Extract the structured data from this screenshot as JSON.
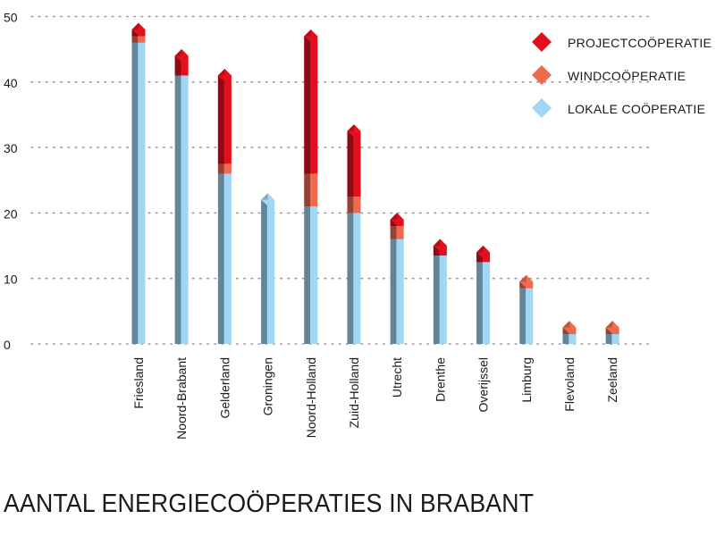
{
  "chart_data": {
    "type": "bar",
    "title": "AANTAL ENERGIECOÖPERATIES IN BRABANT",
    "xlabel": "",
    "ylabel": "",
    "ylim": [
      0,
      50
    ],
    "yticks": [
      "0",
      "10",
      "20",
      "30",
      "40",
      "50"
    ],
    "grid": true,
    "stacked": true,
    "legend_position": "top-right",
    "categories": [
      "Friesland",
      "Noord-Brabant",
      "Gelderland",
      "Groningen",
      "Noord-Holland",
      "Zuid-Holland",
      "Utrecht",
      "Drenthe",
      "Overijssel",
      "Limburg",
      "Flevoland",
      "Zeeland"
    ],
    "series": [
      {
        "name": "LOKALE COÖPERATIE",
        "color": "#a2d6f5",
        "values": [
          46,
          41,
          26,
          22,
          21,
          20,
          16,
          13.5,
          12.5,
          8.5,
          1.5,
          1.5
        ]
      },
      {
        "name": "WINDCOÖPERATIE",
        "color": "#f06a50",
        "values": [
          1,
          0,
          1.5,
          0,
          5,
          2.5,
          2,
          0,
          0,
          1,
          1,
          1
        ]
      },
      {
        "name": "PROJECTCOÖPERATIE",
        "color": "#e2101e",
        "values": [
          1,
          3,
          13.5,
          0,
          21,
          10,
          1,
          1.5,
          1.5,
          0,
          0,
          0
        ]
      }
    ]
  }
}
